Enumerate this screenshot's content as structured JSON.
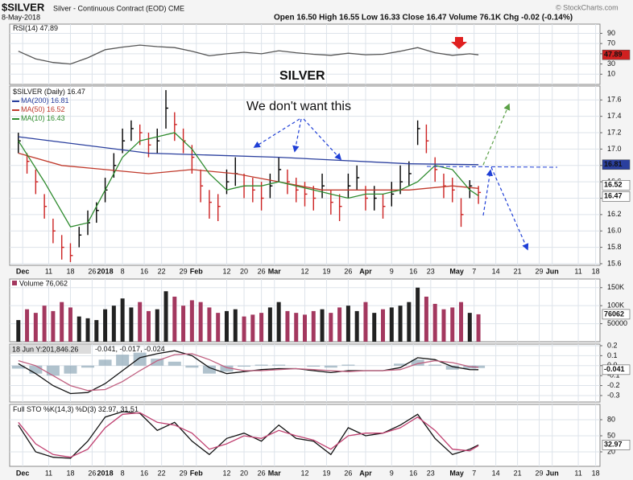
{
  "header": {
    "symbol": "$SILVER",
    "description": "Silver - Continuous Contract (EOD) CME",
    "date": "8-May-2018",
    "quote": "Open 16.50  High 16.55  Low 16.33  Close 16.47  Volume 76.1K  Chg -0.02 (-0.14%)",
    "watermark": "© StockCharts.com"
  },
  "chart_data": [
    {
      "type": "line",
      "annotation": "SILVER",
      "series": [
        {
          "name": "RSI(14)",
          "color": "#555555",
          "x": [
            0,
            4,
            8,
            12,
            16,
            20,
            24,
            28,
            32,
            36,
            40,
            44,
            48,
            52,
            56,
            60,
            64,
            68,
            72,
            76,
            80,
            84,
            88,
            92,
            96,
            100,
            104,
            106
          ],
          "values": [
            55,
            40,
            33,
            30,
            42,
            58,
            63,
            67,
            64,
            62,
            55,
            46,
            50,
            53,
            50,
            56,
            52,
            49,
            47,
            51,
            48,
            49,
            55,
            62,
            52,
            47,
            50,
            47.89
          ]
        }
      ],
      "ylim": [
        -10,
        108
      ],
      "yticks": [
        90,
        70,
        50,
        30,
        10
      ],
      "grid": true
    },
    {
      "type": "ohlc",
      "name": "$SILVER (Daily)",
      "up_color": "#000000",
      "down_color": "#cc2222",
      "annotation": "We don't want this",
      "x": [
        0,
        2,
        4,
        6,
        8,
        10,
        12,
        14,
        16,
        18,
        20,
        22,
        24,
        26,
        28,
        30,
        32,
        34,
        36,
        38,
        40,
        42,
        44,
        46,
        48,
        50,
        52,
        54,
        56,
        58,
        60,
        62,
        64,
        66,
        68,
        70,
        72,
        74,
        76,
        78,
        80,
        82,
        84,
        86,
        88,
        90,
        92,
        94,
        96,
        98,
        100,
        102,
        104,
        106
      ],
      "high": [
        17.2,
        16.95,
        16.75,
        16.45,
        16.15,
        15.95,
        15.85,
        16.05,
        16.25,
        16.35,
        16.65,
        16.95,
        17.25,
        17.35,
        17.3,
        17.2,
        17.25,
        17.72,
        17.45,
        17.25,
        17.05,
        16.75,
        16.5,
        16.45,
        16.75,
        16.9,
        16.7,
        16.65,
        16.6,
        16.7,
        16.9,
        16.75,
        16.65,
        16.6,
        16.55,
        16.7,
        16.5,
        16.45,
        16.7,
        16.8,
        16.55,
        16.55,
        16.45,
        16.6,
        16.8,
        16.85,
        17.35,
        17.3,
        16.9,
        16.7,
        16.65,
        16.4,
        16.62,
        16.55
      ],
      "low": [
        16.95,
        16.7,
        16.45,
        16.15,
        15.85,
        15.65,
        15.62,
        15.8,
        15.95,
        16.1,
        16.35,
        16.65,
        16.95,
        17.1,
        17.05,
        16.9,
        16.95,
        17.25,
        17.1,
        16.95,
        16.7,
        16.35,
        16.15,
        16.12,
        16.45,
        16.55,
        16.4,
        16.35,
        16.25,
        16.4,
        16.6,
        16.45,
        16.35,
        16.3,
        16.25,
        16.4,
        16.2,
        16.12,
        16.4,
        16.5,
        16.25,
        16.25,
        16.15,
        16.3,
        16.45,
        16.55,
        17.05,
        16.95,
        16.6,
        16.4,
        16.35,
        16.05,
        16.4,
        16.33
      ],
      "close": [
        17.1,
        16.85,
        16.6,
        16.3,
        16.0,
        15.8,
        15.7,
        15.95,
        16.1,
        16.25,
        16.5,
        16.8,
        17.1,
        17.25,
        17.2,
        17.05,
        17.1,
        17.5,
        17.3,
        17.1,
        16.9,
        16.55,
        16.35,
        16.3,
        16.6,
        16.7,
        16.55,
        16.5,
        16.4,
        16.55,
        16.75,
        16.6,
        16.5,
        16.45,
        16.4,
        16.55,
        16.35,
        16.3,
        16.55,
        16.65,
        16.4,
        16.4,
        16.3,
        16.45,
        16.6,
        16.7,
        17.25,
        17.1,
        16.75,
        16.55,
        16.5,
        16.2,
        16.55,
        16.47
      ],
      "series": [
        {
          "name": "MA(200)",
          "color": "#2a3f9e",
          "x": [
            0,
            30,
            60,
            90,
            106
          ],
          "values": [
            17.15,
            16.95,
            16.9,
            16.82,
            16.81
          ]
        },
        {
          "name": "MA(50)",
          "color": "#c0392b",
          "x": [
            0,
            10,
            20,
            30,
            40,
            50,
            60,
            70,
            80,
            90,
            100,
            106
          ],
          "values": [
            16.95,
            16.8,
            16.75,
            16.7,
            16.75,
            16.7,
            16.6,
            16.5,
            16.5,
            16.5,
            16.55,
            16.52
          ]
        },
        {
          "name": "MA(10)",
          "color": "#2e8b2e",
          "x": [
            0,
            6,
            12,
            16,
            20,
            24,
            28,
            32,
            36,
            40,
            44,
            48,
            52,
            56,
            60,
            64,
            68,
            72,
            76,
            80,
            84,
            88,
            92,
            96,
            100,
            104,
            106
          ],
          "values": [
            17.1,
            16.6,
            16.05,
            16.1,
            16.5,
            16.9,
            17.1,
            17.15,
            17.2,
            17.0,
            16.7,
            16.5,
            16.55,
            16.55,
            16.6,
            16.55,
            16.5,
            16.45,
            16.4,
            16.45,
            16.45,
            16.5,
            16.6,
            16.8,
            16.75,
            16.5,
            16.43
          ]
        }
      ],
      "xlim": [
        -2,
        134
      ],
      "xticks": [
        {
          "value": 1,
          "label": "Dec"
        },
        {
          "value": 7,
          "label": "11"
        },
        {
          "value": 12,
          "label": "18"
        },
        {
          "value": 17,
          "label": "26"
        },
        {
          "value": 20,
          "label": "2018"
        },
        {
          "value": 24,
          "label": "8"
        },
        {
          "value": 29,
          "label": "16"
        },
        {
          "value": 33,
          "label": "22"
        },
        {
          "value": 38,
          "label": "29"
        },
        {
          "value": 41,
          "label": "Feb"
        },
        {
          "value": 48,
          "label": "12"
        },
        {
          "value": 52,
          "label": "20"
        },
        {
          "value": 56,
          "label": "26"
        },
        {
          "value": 59,
          "label": "Mar"
        },
        {
          "value": 66,
          "label": "12"
        },
        {
          "value": 71,
          "label": "19"
        },
        {
          "value": 76,
          "label": "26"
        },
        {
          "value": 80,
          "label": "Apr"
        },
        {
          "value": 86,
          "label": "9"
        },
        {
          "value": 91,
          "label": "16"
        },
        {
          "value": 95,
          "label": "23"
        },
        {
          "value": 101,
          "label": "May"
        },
        {
          "value": 105,
          "label": "7"
        },
        {
          "value": 110,
          "label": "14"
        },
        {
          "value": 115,
          "label": "21"
        },
        {
          "value": 120,
          "label": "29"
        },
        {
          "value": 123,
          "label": "Jun"
        },
        {
          "value": 129,
          "label": "11"
        },
        {
          "value": 133,
          "label": "18"
        }
      ],
      "ylim": [
        15.58,
        17.77
      ],
      "yticks": [
        15.6,
        15.8,
        {
          "value": 16,
          "label": "16.0"
        },
        16.2,
        16.4,
        16.6,
        16.8,
        {
          "value": 17,
          "label": "17.0"
        },
        17.2,
        17.4,
        17.6
      ],
      "grid": true
    },
    {
      "type": "bar",
      "legend": "Volume 76,062",
      "up_color": "#222222",
      "down_color": "#a3385f",
      "x": [
        0,
        2,
        4,
        6,
        8,
        10,
        12,
        14,
        16,
        18,
        20,
        22,
        24,
        26,
        28,
        30,
        32,
        34,
        36,
        38,
        40,
        42,
        44,
        46,
        48,
        50,
        52,
        54,
        56,
        58,
        60,
        62,
        64,
        66,
        68,
        70,
        72,
        74,
        76,
        78,
        80,
        82,
        84,
        86,
        88,
        90,
        92,
        94,
        96,
        98,
        100,
        102,
        104,
        106
      ],
      "values": [
        60000,
        90000,
        80000,
        100000,
        85000,
        110000,
        95000,
        70000,
        65000,
        60000,
        90000,
        100000,
        120000,
        95000,
        110000,
        85000,
        90000,
        140000,
        125000,
        100000,
        115000,
        110000,
        95000,
        80000,
        85000,
        90000,
        70000,
        75000,
        80000,
        95000,
        110000,
        85000,
        80000,
        75000,
        85000,
        90000,
        80000,
        95000,
        100000,
        85000,
        110000,
        80000,
        90000,
        95000,
        100000,
        110000,
        150000,
        125000,
        105000,
        90000,
        95000,
        110000,
        80000,
        76062
      ],
      "ylim": [
        0,
        174000
      ],
      "yticks": [
        {
          "value": 150000,
          "label": "150K"
        },
        {
          "value": 100000,
          "label": "100K"
        },
        50000
      ],
      "grid": true
    },
    {
      "type": "line",
      "tooltip": "18 Jun Y:201,846.26",
      "series": [
        {
          "name": "MACD",
          "color": "#111111",
          "x": [
            0,
            4,
            8,
            12,
            16,
            20,
            24,
            28,
            32,
            36,
            40,
            44,
            48,
            52,
            56,
            60,
            64,
            68,
            72,
            76,
            80,
            84,
            88,
            92,
            96,
            100,
            104,
            106
          ],
          "values": [
            0.02,
            -0.08,
            -0.2,
            -0.28,
            -0.27,
            -0.18,
            -0.05,
            0.08,
            0.12,
            0.15,
            0.1,
            -0.02,
            -0.08,
            -0.06,
            -0.04,
            -0.03,
            -0.03,
            -0.05,
            -0.07,
            -0.05,
            -0.05,
            -0.05,
            -0.02,
            0.08,
            0.06,
            -0.01,
            -0.04,
            -0.041
          ]
        },
        {
          "name": "Signal",
          "color": "#c06080",
          "x": [
            0,
            4,
            8,
            12,
            16,
            20,
            24,
            28,
            32,
            36,
            40,
            44,
            48,
            52,
            56,
            60,
            64,
            68,
            72,
            76,
            80,
            84,
            88,
            92,
            96,
            100,
            104,
            106
          ],
          "values": [
            0.05,
            0.0,
            -0.1,
            -0.2,
            -0.25,
            -0.24,
            -0.16,
            -0.05,
            0.05,
            0.11,
            0.12,
            0.06,
            -0.02,
            -0.05,
            -0.05,
            -0.04,
            -0.03,
            -0.04,
            -0.05,
            -0.06,
            -0.05,
            -0.05,
            -0.04,
            0.02,
            0.05,
            0.03,
            -0.01,
            -0.017
          ]
        }
      ],
      "histogram": {
        "color": "#8fa8b8",
        "x": [
          0,
          4,
          8,
          12,
          16,
          20,
          24,
          28,
          32,
          36,
          40,
          44,
          48,
          52,
          56,
          60,
          64,
          68,
          72,
          76,
          80,
          84,
          88,
          92,
          96,
          100,
          104,
          106
        ],
        "values": [
          -0.03,
          -0.08,
          -0.1,
          -0.08,
          -0.02,
          0.06,
          0.11,
          0.13,
          0.07,
          0.04,
          -0.02,
          -0.08,
          -0.06,
          -0.01,
          0.01,
          0.01,
          0,
          -0.01,
          -0.02,
          0.01,
          0,
          0,
          0.02,
          0.06,
          0.01,
          -0.04,
          -0.03,
          -0.024
        ]
      },
      "ylim": [
        -0.365,
        0.216
      ],
      "yticks": [
        0.2,
        0.1,
        {
          "value": 0,
          "label": "0.0"
        },
        -0.1,
        -0.2,
        -0.3
      ],
      "grid": true
    },
    {
      "type": "line",
      "name": "Full STO %K(14,3) %D(3)",
      "series": [
        {
          "name": "%K",
          "color": "#111111",
          "x": [
            0,
            4,
            8,
            12,
            16,
            20,
            24,
            28,
            32,
            36,
            40,
            44,
            48,
            52,
            56,
            60,
            64,
            68,
            72,
            76,
            80,
            84,
            88,
            92,
            96,
            100,
            104,
            106
          ],
          "values": [
            70,
            20,
            10,
            8,
            40,
            85,
            95,
            92,
            60,
            75,
            40,
            15,
            45,
            55,
            40,
            70,
            45,
            40,
            15,
            65,
            50,
            55,
            70,
            90,
            45,
            15,
            25,
            32.97
          ]
        },
        {
          "name": "%D",
          "color": "#c04070",
          "x": [
            0,
            4,
            8,
            12,
            16,
            20,
            24,
            28,
            32,
            36,
            40,
            44,
            48,
            52,
            56,
            60,
            64,
            68,
            72,
            76,
            80,
            84,
            88,
            92,
            96,
            100,
            104,
            106
          ],
          "values": [
            75,
            35,
            15,
            10,
            25,
            65,
            90,
            93,
            75,
            70,
            55,
            25,
            35,
            50,
            45,
            60,
            50,
            42,
            25,
            50,
            55,
            55,
            65,
            85,
            60,
            25,
            22,
            31.51
          ]
        }
      ],
      "ylim": [
        -7,
        108.5
      ],
      "yticks": [
        80,
        50,
        20
      ],
      "grid": true
    }
  ]
}
